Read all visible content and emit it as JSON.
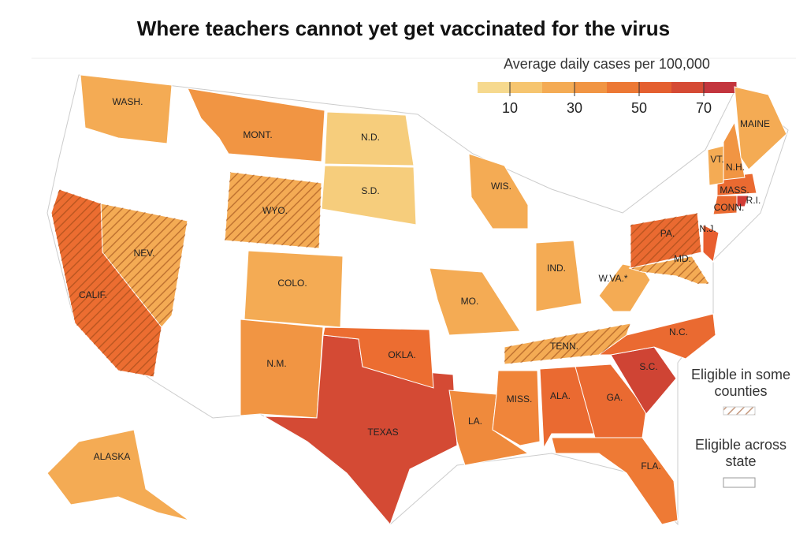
{
  "title": "Where teachers cannot yet get vaccinated for the virus",
  "legend": {
    "title": "Average daily cases per 100,000",
    "range": [
      0,
      80
    ],
    "ticks": [
      10,
      30,
      50,
      70
    ],
    "colors": [
      "#f6d98e",
      "#f6c56f",
      "#f4ab54",
      "#f19543",
      "#ec7834",
      "#e45f2f",
      "#d54a34",
      "#c3353d"
    ],
    "eligible_some": "Eligible in some counties",
    "eligible_all": "Eligible across state"
  },
  "states": [
    {
      "label": "WASH.",
      "color": "#f4ab54",
      "hatched": false
    },
    {
      "label": "MONT.",
      "color": "#f19543",
      "hatched": false
    },
    {
      "label": "N.D.",
      "color": "#f6cd7c",
      "hatched": false
    },
    {
      "label": "S.D.",
      "color": "#f6cd7c",
      "hatched": false
    },
    {
      "label": "WYO.",
      "color": "#f4ab54",
      "hatched": true
    },
    {
      "label": "NEV.",
      "color": "#f4ab54",
      "hatched": true
    },
    {
      "label": "CALIF.",
      "color": "#ec6d31",
      "hatched": true
    },
    {
      "label": "COLO.",
      "color": "#f4ab54",
      "hatched": false
    },
    {
      "label": "N.M.",
      "color": "#f19543",
      "hatched": false
    },
    {
      "label": "TEXAS",
      "color": "#d44a34",
      "hatched": false
    },
    {
      "label": "OKLA.",
      "color": "#ec6d31",
      "hatched": false
    },
    {
      "label": "MO.",
      "color": "#f4ab54",
      "hatched": false
    },
    {
      "label": "LA.",
      "color": "#ef8a3c",
      "hatched": false
    },
    {
      "label": "MISS.",
      "color": "#f0853a",
      "hatched": false
    },
    {
      "label": "ALA.",
      "color": "#ea6a31",
      "hatched": false
    },
    {
      "label": "GA.",
      "color": "#ea6a31",
      "hatched": false
    },
    {
      "label": "FLA.",
      "color": "#ee7a35",
      "hatched": false
    },
    {
      "label": "S.C.",
      "color": "#cf4434",
      "hatched": false
    },
    {
      "label": "N.C.",
      "color": "#ea6a31",
      "hatched": false
    },
    {
      "label": "TENN.",
      "color": "#f4ab54",
      "hatched": true
    },
    {
      "label": "IND.",
      "color": "#f4ab54",
      "hatched": false
    },
    {
      "label": "WIS.",
      "color": "#f4ab54",
      "hatched": false
    },
    {
      "label": "W.VA.*",
      "color": "#f4ab54",
      "hatched": false
    },
    {
      "label": "MD.",
      "color": "#f4ab54",
      "hatched": true
    },
    {
      "label": "PA.",
      "color": "#ea6a31",
      "hatched": true
    },
    {
      "label": "N.J.",
      "color": "#e85e2f",
      "hatched": false
    },
    {
      "label": "MASS.",
      "color": "#ea6a31",
      "hatched": false
    },
    {
      "label": "CONN.",
      "color": "#ea6a31",
      "hatched": false
    },
    {
      "label": "R.I.",
      "color": "#d13c36",
      "hatched": false
    },
    {
      "label": "VT.",
      "color": "#f4ab54",
      "hatched": false
    },
    {
      "label": "N.H.",
      "color": "#f19543",
      "hatched": false
    },
    {
      "label": "MAINE",
      "color": "#f4ab54",
      "hatched": false
    },
    {
      "label": "ALASKA",
      "color": "#f4ab54",
      "hatched": false
    }
  ]
}
